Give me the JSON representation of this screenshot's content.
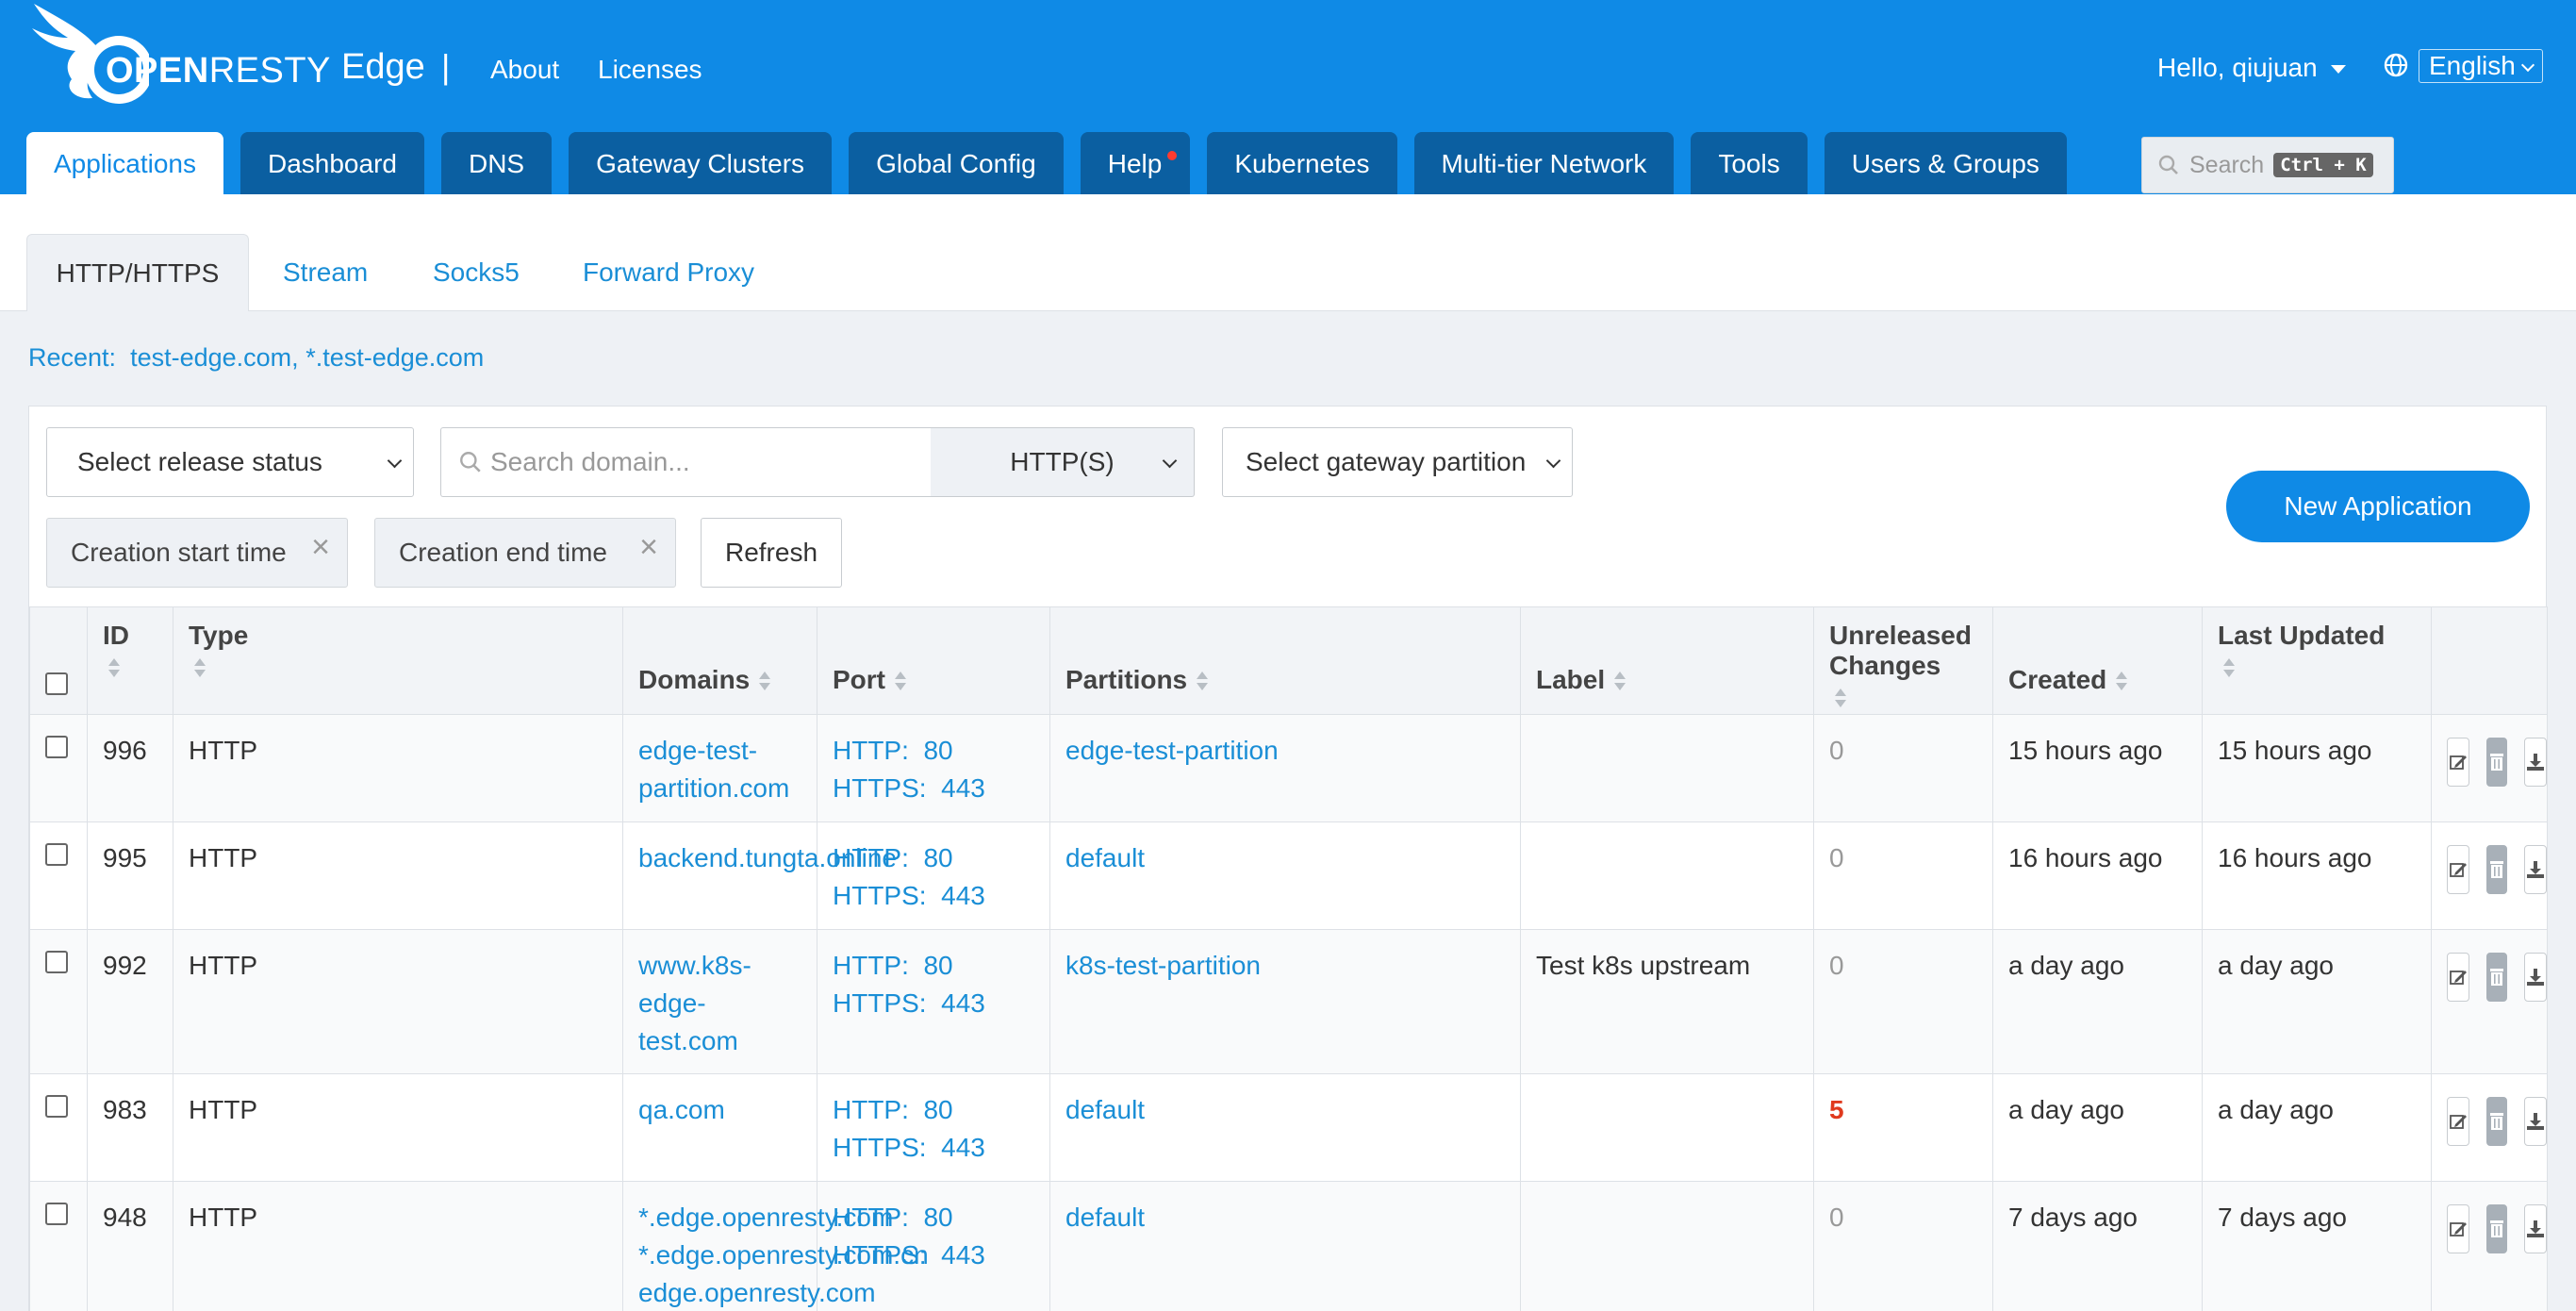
{
  "header": {
    "logo_brand_bold": "OPEN",
    "logo_brand_rest": "RESTY",
    "product": "Edge",
    "separator": "|",
    "links": [
      "About",
      "Licenses"
    ],
    "user_greeting": "Hello, qiujuan",
    "language": "English",
    "brand_color": "#0f8ae6"
  },
  "main_tabs": [
    {
      "label": "Applications",
      "active": true
    },
    {
      "label": "Dashboard"
    },
    {
      "label": "DNS"
    },
    {
      "label": "Gateway Clusters"
    },
    {
      "label": "Global Config"
    },
    {
      "label": "Help",
      "notification": true
    },
    {
      "label": "Kubernetes"
    },
    {
      "label": "Multi-tier Network"
    },
    {
      "label": "Tools"
    },
    {
      "label": "Users & Groups"
    }
  ],
  "top_search": {
    "placeholder": "Search",
    "shortcut": "Ctrl + K"
  },
  "sub_tabs": [
    {
      "label": "HTTP/HTTPS",
      "active": true
    },
    {
      "label": "Stream"
    },
    {
      "label": "Socks5"
    },
    {
      "label": "Forward Proxy"
    }
  ],
  "recent": {
    "label": "Recent:",
    "items": [
      "test-edge.com",
      "*.test-edge.com"
    ],
    "separator": ","
  },
  "filters": {
    "release_status": "Select release status",
    "domain_placeholder": "Search domain...",
    "protocol": "HTTP(S)",
    "gateway_partition": "Select gateway partition",
    "creation_start": "Creation start time",
    "creation_end": "Creation end time",
    "clear_glyph": "×",
    "refresh": "Refresh",
    "new_application": "New Application"
  },
  "table": {
    "columns": [
      "ID",
      "Type",
      "Domains",
      "Port",
      "Partitions",
      "Label",
      "Unreleased Changes",
      "Created",
      "Last Updated"
    ],
    "port_http_label": "HTTP:",
    "port_https_label": "HTTPS:",
    "rows": [
      {
        "id": "996",
        "type": "HTTP",
        "domains": [
          "edge-test-partition.com"
        ],
        "http_port": "80",
        "https_port": "443",
        "partitions": "edge-test-partition",
        "label": "",
        "unreleased": "0",
        "created": "15 hours ago",
        "updated": "15 hours ago"
      },
      {
        "id": "995",
        "type": "HTTP",
        "domains": [
          "backend.tungta.online"
        ],
        "http_port": "80",
        "https_port": "443",
        "partitions": "default",
        "label": "",
        "unreleased": "0",
        "created": "16 hours ago",
        "updated": "16 hours ago"
      },
      {
        "id": "992",
        "type": "HTTP",
        "domains": [
          "www.k8s-edge-test.com"
        ],
        "http_port": "80",
        "https_port": "443",
        "partitions": "k8s-test-partition",
        "label": "Test k8s upstream",
        "unreleased": "0",
        "created": "a day ago",
        "updated": "a day ago"
      },
      {
        "id": "983",
        "type": "HTTP",
        "domains": [
          "qa.com"
        ],
        "http_port": "80",
        "https_port": "443",
        "partitions": "default",
        "label": "",
        "unreleased": "5",
        "created": "a day ago",
        "updated": "a day ago"
      },
      {
        "id": "948",
        "type": "HTTP",
        "domains": [
          "*.edge.openresty.com",
          "*.edge.openresty.com.cn",
          "edge.openresty.com"
        ],
        "http_port": "80",
        "https_port": "443",
        "partitions": "default",
        "label": "",
        "unreleased": "0",
        "created": "7 days ago",
        "updated": "7 days ago"
      }
    ]
  },
  "icons": [
    "bird-logo-icon",
    "globe-icon",
    "search-icon",
    "edit-icon",
    "trash-icon",
    "download-icon"
  ]
}
